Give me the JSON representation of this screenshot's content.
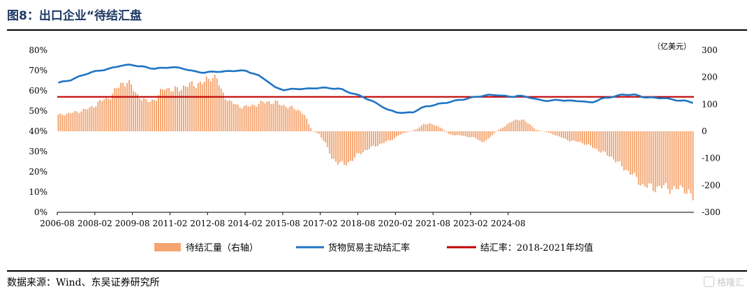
{
  "header": {
    "title": "图8：出口企业“待结汇盘"
  },
  "source": "数据来源：Wind、东吴证券研究所",
  "watermark": "格隆汇",
  "chart_data": {
    "type": "bar+line",
    "unit_right": "（亿美元）",
    "x_ticks": [
      "2006-08",
      "2008-02",
      "2009-08",
      "2011-02",
      "2012-08",
      "2014-02",
      "2015-08",
      "2017-02",
      "2018-08",
      "2020-02",
      "2021-08",
      "2023-02",
      "2024-08"
    ],
    "x_range": [
      "2006-08",
      "2025-09"
    ],
    "y_left": {
      "ticks": [
        "0%",
        "10%",
        "20%",
        "30%",
        "40%",
        "50%",
        "60%",
        "70%",
        "80%"
      ],
      "range": [
        0,
        80
      ]
    },
    "y_right": {
      "ticks": [
        "-300",
        "-200",
        "-100",
        "0",
        "100",
        "200",
        "300"
      ],
      "range": [
        -300,
        300
      ]
    },
    "legend": [
      "待结汇量（右轴）",
      "货物贸易主动结汇率",
      "结汇率：2018-2021年均值"
    ],
    "colors": {
      "bars": "#f4a46f",
      "line": "#1f74c4",
      "mean": "#c00000"
    },
    "mean_value": 57,
    "line_anchors": [
      [
        0,
        64
      ],
      [
        5,
        65
      ],
      [
        10,
        67
      ],
      [
        15,
        69
      ],
      [
        20,
        70
      ],
      [
        25,
        71
      ],
      [
        30,
        72.5
      ],
      [
        35,
        72.8
      ],
      [
        40,
        72
      ],
      [
        45,
        71
      ],
      [
        50,
        71.2
      ],
      [
        54,
        71.7
      ],
      [
        60,
        71
      ],
      [
        65,
        69.5
      ],
      [
        70,
        69
      ],
      [
        75,
        69.5
      ],
      [
        80,
        69.5
      ],
      [
        85,
        70
      ],
      [
        90,
        69.8
      ],
      [
        95,
        68
      ],
      [
        100,
        65
      ],
      [
        104,
        61.5
      ],
      [
        108,
        60.5
      ],
      [
        115,
        61
      ],
      [
        120,
        61
      ],
      [
        125,
        61.5
      ],
      [
        130,
        61.3
      ],
      [
        135,
        61
      ],
      [
        140,
        59
      ],
      [
        143,
        58
      ],
      [
        146,
        57
      ],
      [
        150,
        55
      ],
      [
        154,
        53
      ],
      [
        158,
        50.5
      ],
      [
        162,
        49.5
      ],
      [
        166,
        49
      ],
      [
        170,
        49.5
      ],
      [
        175,
        52
      ],
      [
        180,
        53
      ],
      [
        185,
        54
      ],
      [
        190,
        55
      ],
      [
        195,
        56
      ],
      [
        200,
        57
      ],
      [
        205,
        57.8
      ],
      [
        210,
        58
      ],
      [
        213,
        57.5
      ],
      [
        217,
        57
      ],
      [
        220,
        57.5
      ],
      [
        225,
        57
      ],
      [
        230,
        55.5
      ],
      [
        235,
        55
      ],
      [
        240,
        55.5
      ],
      [
        245,
        55
      ],
      [
        250,
        55
      ],
      [
        255,
        54
      ],
      [
        260,
        56
      ],
      [
        265,
        57
      ],
      [
        270,
        58
      ],
      [
        273,
        58.2
      ],
      [
        276,
        58
      ],
      [
        280,
        57
      ],
      [
        285,
        56.5
      ],
      [
        290,
        56.5
      ],
      [
        295,
        55.5
      ],
      [
        300,
        55
      ],
      [
        305,
        54
      ],
      [
        310,
        54
      ],
      [
        315,
        53
      ],
      [
        320,
        52.5
      ],
      [
        325,
        52
      ],
      [
        330,
        50
      ],
      [
        335,
        49
      ],
      [
        340,
        50
      ],
      [
        345,
        49
      ],
      [
        350,
        48.5
      ],
      [
        355,
        49
      ],
      [
        360,
        49.5
      ],
      [
        364,
        49
      ]
    ],
    "bar_anchors": [
      [
        0,
        60
      ],
      [
        8,
        70
      ],
      [
        15,
        85
      ],
      [
        20,
        110
      ],
      [
        25,
        130
      ],
      [
        30,
        175
      ],
      [
        33,
        185
      ],
      [
        38,
        135
      ],
      [
        42,
        110
      ],
      [
        47,
        120
      ],
      [
        51,
        165
      ],
      [
        55,
        150
      ],
      [
        60,
        165
      ],
      [
        65,
        175
      ],
      [
        70,
        180
      ],
      [
        73,
        205
      ],
      [
        76,
        195
      ],
      [
        78,
        150
      ],
      [
        82,
        110
      ],
      [
        86,
        95
      ],
      [
        90,
        90
      ],
      [
        95,
        100
      ],
      [
        100,
        110
      ],
      [
        105,
        105
      ],
      [
        110,
        90
      ],
      [
        115,
        80
      ],
      [
        118,
        60
      ],
      [
        120,
        25
      ],
      [
        122,
        0
      ],
      [
        125,
        -10
      ],
      [
        128,
        -45
      ],
      [
        131,
        -100
      ],
      [
        134,
        -115
      ],
      [
        137,
        -125
      ],
      [
        140,
        -110
      ],
      [
        143,
        -90
      ],
      [
        146,
        -75
      ],
      [
        150,
        -60
      ],
      [
        155,
        -45
      ],
      [
        160,
        -30
      ],
      [
        163,
        -15
      ],
      [
        166,
        -5
      ],
      [
        169,
        0
      ],
      [
        172,
        10
      ],
      [
        175,
        25
      ],
      [
        178,
        30
      ],
      [
        181,
        20
      ],
      [
        184,
        10
      ],
      [
        187,
        -10
      ],
      [
        190,
        -15
      ],
      [
        193,
        -15
      ],
      [
        196,
        -20
      ],
      [
        200,
        -25
      ],
      [
        203,
        -40
      ],
      [
        206,
        -30
      ],
      [
        209,
        -5
      ],
      [
        212,
        10
      ],
      [
        214,
        20
      ],
      [
        217,
        35
      ],
      [
        220,
        45
      ],
      [
        223,
        40
      ],
      [
        226,
        25
      ],
      [
        229,
        5
      ],
      [
        232,
        0
      ],
      [
        235,
        -5
      ],
      [
        240,
        -20
      ],
      [
        245,
        -35
      ],
      [
        250,
        -40
      ],
      [
        255,
        -55
      ],
      [
        260,
        -75
      ],
      [
        265,
        -95
      ],
      [
        270,
        -130
      ],
      [
        275,
        -160
      ],
      [
        280,
        -200
      ],
      [
        285,
        -210
      ],
      [
        290,
        -205
      ],
      [
        295,
        -215
      ],
      [
        300,
        -210
      ],
      [
        304,
        -250
      ]
    ],
    "bar_count": 305
  }
}
